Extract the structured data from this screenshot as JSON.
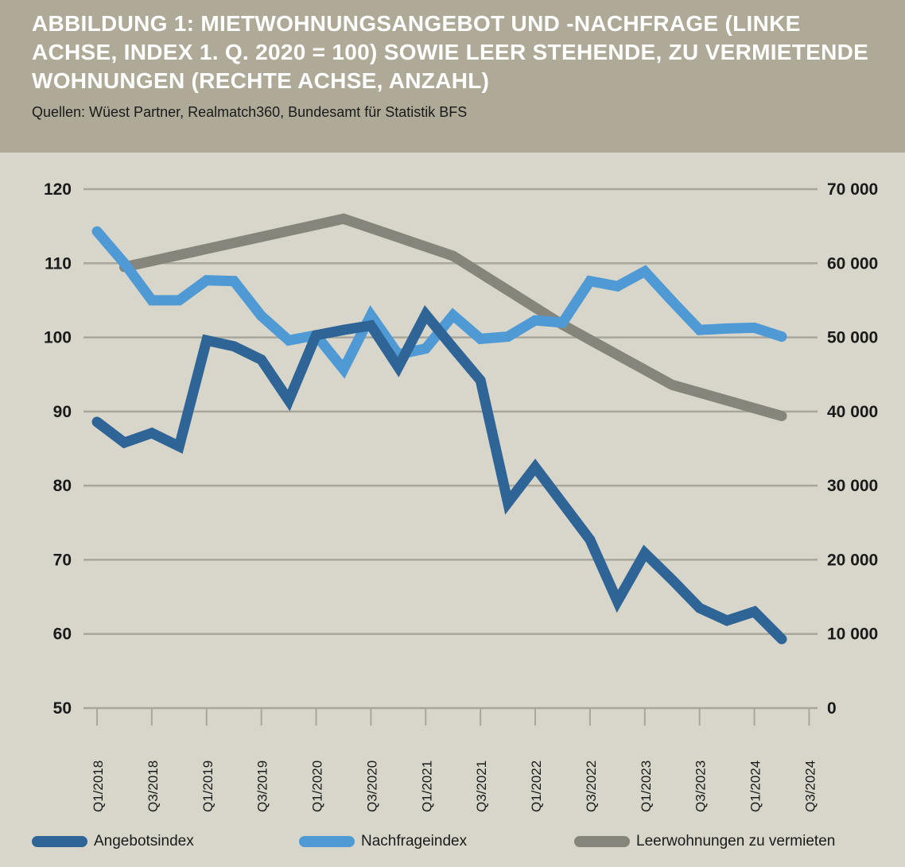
{
  "header": {
    "title": "ABBILDUNG 1: MIETWOHNUNGSANGEBOT UND -NACHFRAGE (LINKE ACHSE, INDEX 1. Q. 2020 = 100) SOWIE LEER STEHENDE, ZU VERMIETENDE WOHNUNGEN (RECHTE ACHSE, ANZAHL)",
    "source": "Quellen: Wüest Partner, Realmatch360, Bundesamt für Statistik BFS"
  },
  "colors": {
    "header_bg": "#afa998",
    "plot_bg": "#d8d6ca",
    "angebot": "#2e6596",
    "nachfrage": "#4f9ad4",
    "leer": "#86857b",
    "grid": "#a9a79d"
  },
  "chart_data": {
    "type": "line",
    "title": "ABBILDUNG 1: MIETWOHNUNGSANGEBOT UND -NACHFRAGE (LINKE ACHSE, INDEX 1. Q. 2020 = 100) SOWIE LEER STEHENDE, ZU VERMIETENDE WOHNUNGEN (RECHTE ACHSE, ANZAHL)",
    "x_tick_labels": [
      "Q1/2018",
      "Q3/2018",
      "Q1/2019",
      "Q3/2019",
      "Q1/2020",
      "Q3/2020",
      "Q1/2021",
      "Q3/2021",
      "Q1/2022",
      "Q3/2022",
      "Q1/2023",
      "Q3/2023",
      "Q1/2024",
      "Q3/2024"
    ],
    "y_left": {
      "ticks": [
        50,
        60,
        70,
        80,
        90,
        100,
        110,
        120
      ],
      "ylim": [
        50,
        120
      ]
    },
    "y_right": {
      "ticks": [
        "0",
        "10 000",
        "20 000",
        "30 000",
        "40 000",
        "50 000",
        "60 000",
        "70 000"
      ],
      "ylim": [
        0,
        70000
      ]
    },
    "grid": true,
    "legend_position": "bottom",
    "series": [
      {
        "name": "Angebotsindex",
        "axis": "left",
        "color": "#2e6596",
        "x": [
          "Q1/2018",
          "Q2/2018",
          "Q3/2018",
          "Q4/2018",
          "Q1/2019",
          "Q2/2019",
          "Q3/2019",
          "Q4/2019",
          "Q1/2020",
          "Q2/2020",
          "Q3/2020",
          "Q4/2020",
          "Q1/2021",
          "Q2/2021",
          "Q3/2021",
          "Q4/2021",
          "Q1/2022",
          "Q2/2022",
          "Q3/2022",
          "Q4/2022",
          "Q1/2023",
          "Q2/2023",
          "Q3/2023",
          "Q4/2023",
          "Q1/2024",
          "Q2/2024"
        ],
        "values": [
          88.6,
          85.8,
          87.1,
          85.3,
          99.6,
          98.8,
          97.0,
          91.5,
          100.3,
          101.0,
          101.6,
          96.0,
          103.1,
          98.6,
          94.2,
          77.7,
          82.5,
          77.6,
          72.7,
          64.4,
          70.9,
          67.3,
          63.5,
          61.8,
          63.0,
          59.3
        ]
      },
      {
        "name": "Nachfrageindex",
        "axis": "left",
        "color": "#4f9ad4",
        "x": [
          "Q1/2018",
          "Q2/2018",
          "Q3/2018",
          "Q4/2018",
          "Q1/2019",
          "Q2/2019",
          "Q3/2019",
          "Q4/2019",
          "Q1/2020",
          "Q2/2020",
          "Q3/2020",
          "Q4/2020",
          "Q1/2021",
          "Q2/2021",
          "Q3/2021",
          "Q4/2021",
          "Q1/2022",
          "Q2/2022",
          "Q3/2022",
          "Q4/2022",
          "Q1/2023",
          "Q2/2023",
          "Q3/2023",
          "Q4/2023",
          "Q1/2024",
          "Q2/2024"
        ],
        "values": [
          114.3,
          110.0,
          105.0,
          105.0,
          107.7,
          107.6,
          102.9,
          99.6,
          100.3,
          95.7,
          103.0,
          97.7,
          98.5,
          103.0,
          99.8,
          100.1,
          102.3,
          102.0,
          107.6,
          106.9,
          108.9,
          104.9,
          101.0,
          101.2,
          101.3,
          100.1
        ]
      },
      {
        "name": "Leerwohnungen zu vermieten",
        "axis": "right",
        "color": "#86857b",
        "x": [
          "Q2/2018",
          "Q2/2020",
          "Q2/2021",
          "Q2/2022",
          "Q2/2023",
          "Q2/2024"
        ],
        "values": [
          59500,
          66000,
          61000,
          51700,
          43600,
          39400
        ]
      }
    ]
  }
}
